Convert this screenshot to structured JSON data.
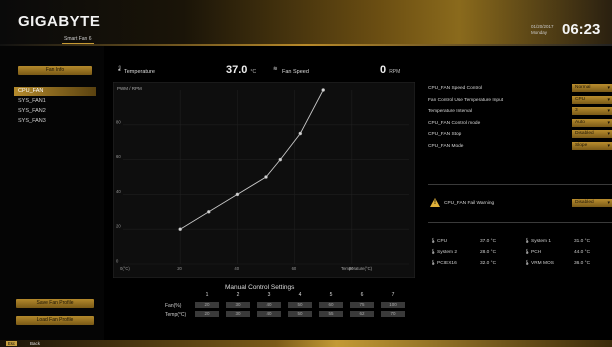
{
  "header": {
    "logo": "GIGABYTE",
    "subtab": "Smart Fan 6",
    "date": "01/20/2017",
    "weekday": "Monday",
    "time": "06:23"
  },
  "left_panel": {
    "top_button": "Fan Info",
    "fans": [
      "CPU_FAN",
      "SYS_FAN1",
      "SYS_FAN2",
      "SYS_FAN3"
    ],
    "active_fan_index": 0,
    "save_button": "Save Fan Profile",
    "load_button": "Load Fan Profile"
  },
  "stats": {
    "temperature_label": "Temperature",
    "temperature_value": "37.0",
    "temperature_unit": "°C",
    "fan_speed_label": "Fan Speed",
    "fan_speed_value": "0",
    "fan_speed_unit": "RPM"
  },
  "chart_data": {
    "type": "line",
    "y_axis_label": "PWM / RPM",
    "x_axis_label": "Temperature(°C)",
    "x_ticks": [
      "0(°C)",
      "20",
      "40",
      "60",
      "80",
      "100"
    ],
    "y_ticks": [
      "100%",
      "80",
      "60",
      "40",
      "20",
      "0"
    ],
    "xlim": [
      0,
      100
    ],
    "ylim": [
      0,
      100
    ],
    "points": [
      {
        "x": 20,
        "y": 20
      },
      {
        "x": 30,
        "y": 30
      },
      {
        "x": 40,
        "y": 40
      },
      {
        "x": 50,
        "y": 50
      },
      {
        "x": 55,
        "y": 60
      },
      {
        "x": 62,
        "y": 75
      },
      {
        "x": 70,
        "y": 100
      }
    ]
  },
  "manual_control": {
    "title": "Manual Control Settings",
    "columns": [
      "1",
      "2",
      "3",
      "4",
      "5",
      "6",
      "7"
    ],
    "row_labels": [
      "Fan(%)",
      "Temp(°C)"
    ],
    "fan_values": [
      "20",
      "30",
      "40",
      "50",
      "60",
      "75",
      "100"
    ],
    "temp_values": [
      "20",
      "30",
      "40",
      "50",
      "55",
      "62",
      "70"
    ]
  },
  "settings": [
    {
      "label": "CPU_FAN Speed Control",
      "value": "Normal"
    },
    {
      "label": "Fan Control Use Temperature Input",
      "value": "CPU"
    },
    {
      "label": "Temperature Interval",
      "value": "3"
    },
    {
      "label": "CPU_FAN Control mode",
      "value": "Auto"
    },
    {
      "label": "CPU_FAN Stop",
      "value": "Disabled"
    },
    {
      "label": "CPU_FAN Mode",
      "value": "Slope"
    }
  ],
  "warning": {
    "label": "CPU_FAN Fail Warning",
    "value": "Disabled"
  },
  "temps": [
    {
      "name": "CPU",
      "value": "37.0 °C"
    },
    {
      "name": "System 1",
      "value": "31.0 °C"
    },
    {
      "name": "System 2",
      "value": "28.0 °C"
    },
    {
      "name": "PCH",
      "value": "44.0 °C"
    },
    {
      "name": "PCIEX16",
      "value": "32.0 °C"
    },
    {
      "name": "VRM MOS",
      "value": "36.0 °C"
    }
  ],
  "footer": {
    "key": "Esc",
    "label": "Back"
  },
  "colors": {
    "accent": "#b48a2c",
    "chart_line": "#c8c8c8",
    "warning": "#e0b13a"
  }
}
